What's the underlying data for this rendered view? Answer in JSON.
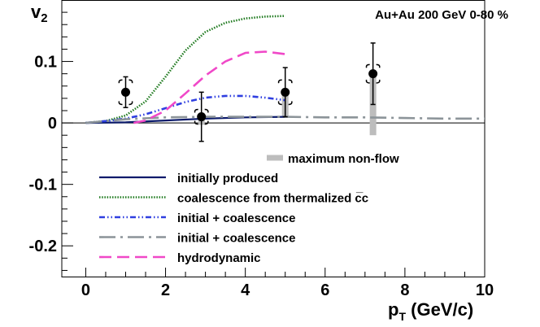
{
  "chart_data": {
    "type": "scatter",
    "title": "",
    "annotation": "Au+Au 200 GeV 0-80 %",
    "xlabel": {
      "main": "p",
      "sub": "T",
      "unit": " (GeV/c)"
    },
    "ylabel": {
      "main": "v",
      "sub": "2"
    },
    "xlim": [
      -0.6,
      10
    ],
    "ylim": [
      -0.25,
      0.2
    ],
    "xticks": [
      0,
      2,
      4,
      6,
      8,
      10
    ],
    "xtick_labels": [
      "0",
      "2",
      "4",
      "6",
      "8",
      "10"
    ],
    "yticks": [
      -0.2,
      -0.1,
      0,
      0.1
    ],
    "ytick_labels": [
      "-0.2",
      "-0.1",
      "0",
      "0.1"
    ],
    "colors": {
      "initially_produced": "#0b1a6b",
      "coalescence_thermalized": "#1f7a1f",
      "initial_coalescence_blue": "#2f3fe0",
      "initial_coalescence_gray": "#8c9499",
      "hydrodynamic": "#f048c8",
      "nonflow": "#bdbdbd",
      "points": "#000000"
    },
    "data_points": [
      {
        "x": 1.0,
        "y": 0.05,
        "stat_err": 0.025,
        "sys_err": 0.02
      },
      {
        "x": 2.9,
        "y": 0.01,
        "stat_err": 0.04,
        "sys_err": 0.012
      },
      {
        "x": 5.0,
        "y": 0.05,
        "stat_err": 0.04,
        "sys_err": 0.02
      },
      {
        "x": 7.2,
        "y": 0.08,
        "stat_err": 0.05,
        "sys_err": 0.015
      }
    ],
    "nonflow_bars": [
      {
        "x": 2.9,
        "low": -0.003,
        "high": 0.015
      },
      {
        "x": 5.0,
        "low": 0.01,
        "high": 0.055
      },
      {
        "x": 7.2,
        "low": -0.02,
        "high": 0.08
      }
    ],
    "series": [
      {
        "name": "initially produced",
        "style": "solid",
        "color_key": "initially_produced",
        "x": [
          0,
          1,
          2,
          3,
          4,
          5
        ],
        "y": [
          0,
          0.001,
          0.004,
          0.007,
          0.009,
          0.01
        ]
      },
      {
        "name": "coalescence from thermalized c̅c",
        "style": "dotted",
        "color_key": "coalescence_thermalized",
        "x": [
          0,
          0.5,
          1,
          1.5,
          2,
          2.5,
          3,
          3.5,
          4,
          4.5,
          5
        ],
        "y": [
          0,
          0.003,
          0.012,
          0.035,
          0.075,
          0.118,
          0.148,
          0.163,
          0.17,
          0.173,
          0.174
        ]
      },
      {
        "name": "initial + coalescence",
        "style": "dashdotdot",
        "color_key": "initial_coalescence_blue",
        "x": [
          0,
          0.5,
          1,
          1.5,
          2,
          2.5,
          3,
          3.5,
          4,
          4.5,
          5
        ],
        "y": [
          0,
          0.003,
          0.007,
          0.014,
          0.024,
          0.034,
          0.041,
          0.044,
          0.044,
          0.041,
          0.037
        ]
      },
      {
        "name": "initial + coalescence",
        "style": "longdashdot",
        "color_key": "initial_coalescence_gray",
        "x": [
          0,
          1,
          2,
          3,
          4,
          5,
          6,
          7,
          8,
          9,
          10
        ],
        "y": [
          0,
          0.006,
          0.009,
          0.01,
          0.01,
          0.01,
          0.009,
          0.009,
          0.008,
          0.007,
          0.007
        ]
      },
      {
        "name": "hydrodynamic",
        "style": "dashed",
        "color_key": "hydrodynamic",
        "x": [
          1.2,
          1.5,
          2,
          2.5,
          3,
          3.5,
          4,
          4.5,
          5
        ],
        "y": [
          0,
          0.004,
          0.02,
          0.048,
          0.077,
          0.1,
          0.114,
          0.116,
          0.112
        ]
      }
    ],
    "legend": {
      "nonflow_label": "maximum non-flow",
      "entries": [
        {
          "label": "initially produced",
          "style": "solid",
          "color_key": "initially_produced"
        },
        {
          "label": "coalescence from thermalized c̅c",
          "style": "dotted",
          "color_key": "coalescence_thermalized"
        },
        {
          "label": "initial + coalescence",
          "style": "dashdotdot",
          "color_key": "initial_coalescence_blue"
        },
        {
          "label": "initial + coalescence",
          "style": "longdashdot",
          "color_key": "initial_coalescence_gray"
        },
        {
          "label": "hydrodynamic",
          "style": "dashed",
          "color_key": "hydrodynamic"
        }
      ]
    }
  }
}
